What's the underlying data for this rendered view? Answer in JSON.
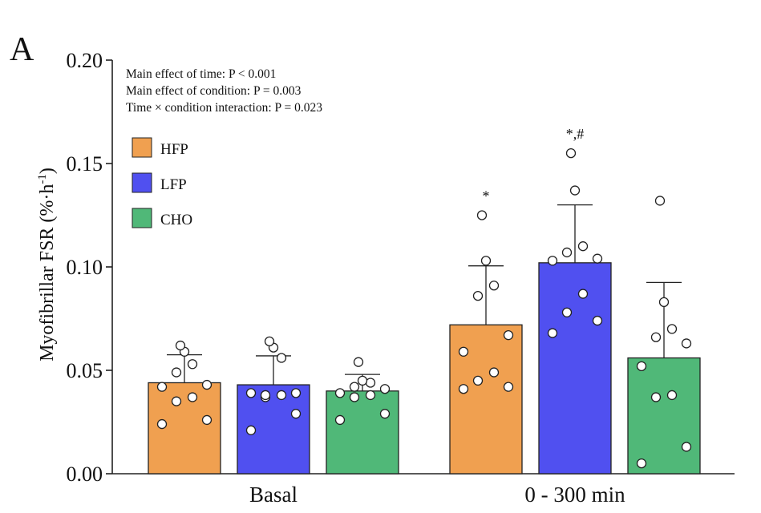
{
  "panel_label": "A",
  "annotations": [
    "Main effect of time: P < 0.001",
    "Main effect of condition: P = 0.003",
    "Time × condition interaction: P = 0.023"
  ],
  "colors": {
    "HFP": "#F0A050",
    "LFP": "#5050F0",
    "CHO": "#50B878"
  },
  "chart_data": {
    "type": "bar",
    "ylabel": "Myofibrillar FSR (%·h",
    "ylabel_sup": "-1",
    "ylabel_tail": ")",
    "ylim": [
      0,
      0.2
    ],
    "yticks": [
      "0.00",
      "0.05",
      "0.10",
      "0.15",
      "0.20"
    ],
    "categories": [
      "Basal",
      "0 - 300 min"
    ],
    "legend": [
      "HFP",
      "LFP",
      "CHO"
    ],
    "legend_position": "upper-left",
    "series": [
      {
        "name": "HFP",
        "values": [
          0.044,
          0.072
        ],
        "sd": [
          0.0135,
          0.0285
        ],
        "sig": [
          "",
          "*"
        ],
        "points": [
          [
            0.024,
            0.026,
            0.035,
            0.037,
            0.042,
            0.043,
            0.049,
            0.053,
            0.059,
            0.062
          ],
          [
            0.041,
            0.042,
            0.045,
            0.049,
            0.059,
            0.067,
            0.086,
            0.091,
            0.103,
            0.125
          ]
        ]
      },
      {
        "name": "LFP",
        "values": [
          0.043,
          0.102
        ],
        "sd": [
          0.014,
          0.028
        ],
        "sig": [
          "",
          "*,#"
        ],
        "points": [
          [
            0.021,
            0.029,
            0.037,
            0.038,
            0.039,
            0.039,
            0.038,
            0.056,
            0.061,
            0.064
          ],
          [
            0.068,
            0.074,
            0.078,
            0.087,
            0.103,
            0.104,
            0.107,
            0.11,
            0.137,
            0.155
          ]
        ]
      },
      {
        "name": "CHO",
        "values": [
          0.04,
          0.056
        ],
        "sd": [
          0.008,
          0.0365
        ],
        "sig": [
          "",
          ""
        ],
        "points": [
          [
            0.026,
            0.029,
            0.037,
            0.038,
            0.039,
            0.041,
            0.042,
            0.044,
            0.045,
            0.054
          ],
          [
            0.005,
            0.013,
            0.037,
            0.038,
            0.052,
            0.063,
            0.066,
            0.07,
            0.083,
            0.132
          ]
        ]
      }
    ]
  }
}
